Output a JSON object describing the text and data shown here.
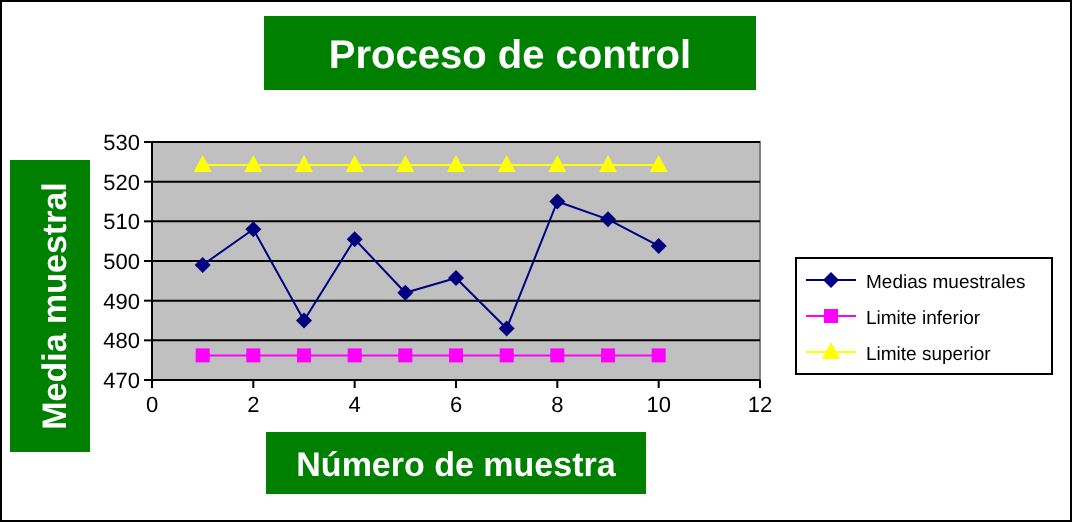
{
  "chart_data": {
    "type": "line",
    "title": "Proceso de control",
    "xlabel": "Número de muestra",
    "ylabel": "Media muestral",
    "x": [
      1,
      2,
      3,
      4,
      5,
      6,
      7,
      8,
      9,
      10
    ],
    "series": [
      {
        "name": "Medias muestrales",
        "color": "#000080",
        "marker": "diamond",
        "values": [
          499,
          508,
          485,
          505.5,
          492,
          495.7,
          483,
          515,
          510.5,
          503.8
        ]
      },
      {
        "name": "Limite inferior",
        "color": "#ff00ff",
        "marker": "square",
        "values": [
          476.2,
          476.2,
          476.2,
          476.2,
          476.2,
          476.2,
          476.2,
          476.2,
          476.2,
          476.2
        ]
      },
      {
        "name": "Limite superior",
        "color": "#ffff00",
        "marker": "triangle",
        "values": [
          524.2,
          524.2,
          524.2,
          524.2,
          524.2,
          524.2,
          524.2,
          524.2,
          524.2,
          524.2
        ]
      }
    ],
    "xlim": [
      0,
      12
    ],
    "xticks": [
      0,
      2,
      4,
      6,
      8,
      10,
      12
    ],
    "ylim": [
      470,
      530
    ],
    "yticks": [
      470,
      480,
      490,
      500,
      510,
      520,
      530
    ],
    "grid": "y",
    "legend": "right"
  }
}
